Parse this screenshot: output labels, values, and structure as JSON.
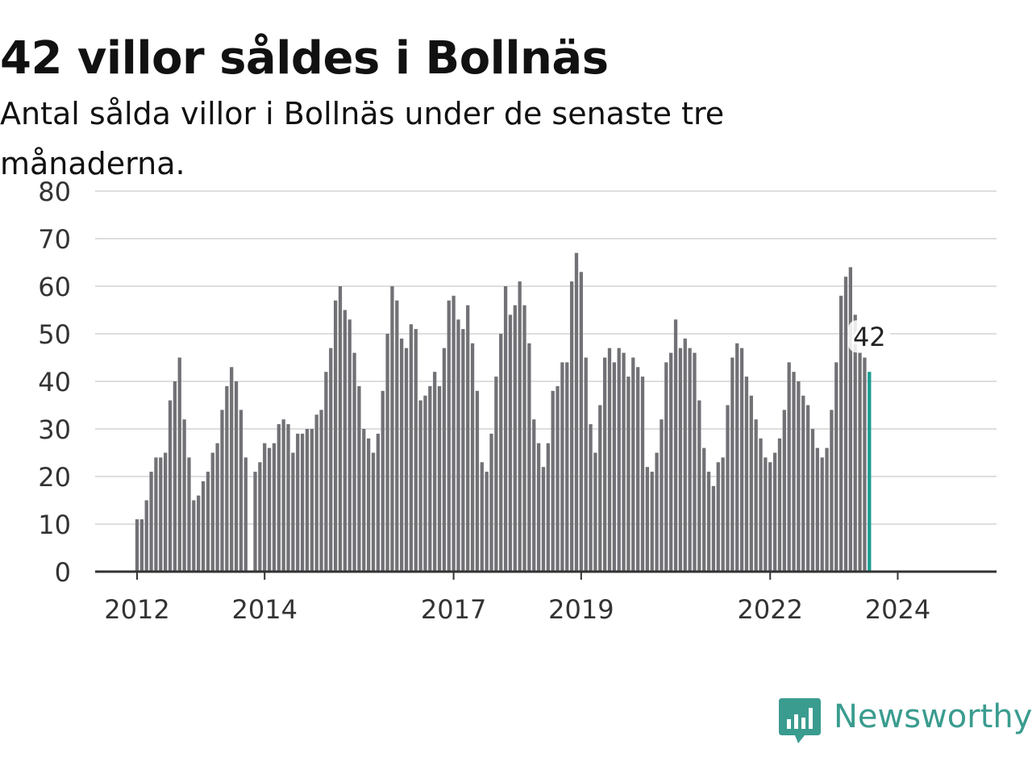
{
  "title": "42 villor såldes i Bollnäs",
  "subtitle": "Antal sålda villor i Bollnäs under de senaste tre månaderna.",
  "brand": {
    "name": "Newsworthy",
    "color": "#3a9c8f",
    "icon": "newsworthy-logo-icon"
  },
  "chart_data": {
    "type": "bar",
    "title": "42 villor såldes i Bollnäs",
    "subtitle": "Antal sålda villor i Bollnäs under de senaste tre månaderna.",
    "xlabel": "",
    "ylabel": "",
    "ylim": [
      0,
      80
    ],
    "yticks": [
      0,
      10,
      20,
      30,
      40,
      50,
      60,
      70,
      80
    ],
    "grid": true,
    "start_year": 2012,
    "xtick_labels": [
      "2012",
      "2014",
      "2017",
      "2019",
      "2022",
      "2024"
    ],
    "xtick_indices": [
      0,
      27,
      67,
      94,
      134,
      161
    ],
    "bar_color": "#727176",
    "highlight_color": "#1a9d91",
    "highlight_label": "42",
    "values": [
      11,
      11,
      15,
      21,
      24,
      24,
      25,
      36,
      40,
      45,
      32,
      24,
      15,
      16,
      19,
      21,
      25,
      27,
      34,
      39,
      43,
      40,
      34,
      24,
      null,
      21,
      23,
      27,
      26,
      27,
      31,
      32,
      31,
      25,
      29,
      29,
      30,
      30,
      33,
      34,
      42,
      47,
      57,
      60,
      55,
      53,
      46,
      39,
      30,
      28,
      25,
      29,
      38,
      50,
      60,
      57,
      49,
      47,
      52,
      51,
      36,
      37,
      39,
      42,
      39,
      47,
      57,
      58,
      53,
      51,
      56,
      48,
      38,
      23,
      21,
      29,
      41,
      50,
      60,
      54,
      56,
      61,
      56,
      48,
      32,
      27,
      22,
      27,
      38,
      39,
      44,
      44,
      61,
      67,
      63,
      45,
      31,
      25,
      35,
      45,
      47,
      44,
      47,
      46,
      41,
      45,
      43,
      41,
      22,
      21,
      25,
      32,
      44,
      46,
      53,
      47,
      49,
      47,
      46,
      36,
      26,
      21,
      18,
      23,
      24,
      35,
      45,
      48,
      47,
      41,
      37,
      32,
      28,
      24,
      23,
      25,
      28,
      34,
      44,
      42,
      40,
      37,
      35,
      30,
      26,
      24,
      26,
      34,
      44,
      58,
      62,
      64,
      54,
      46,
      45,
      42
    ]
  }
}
